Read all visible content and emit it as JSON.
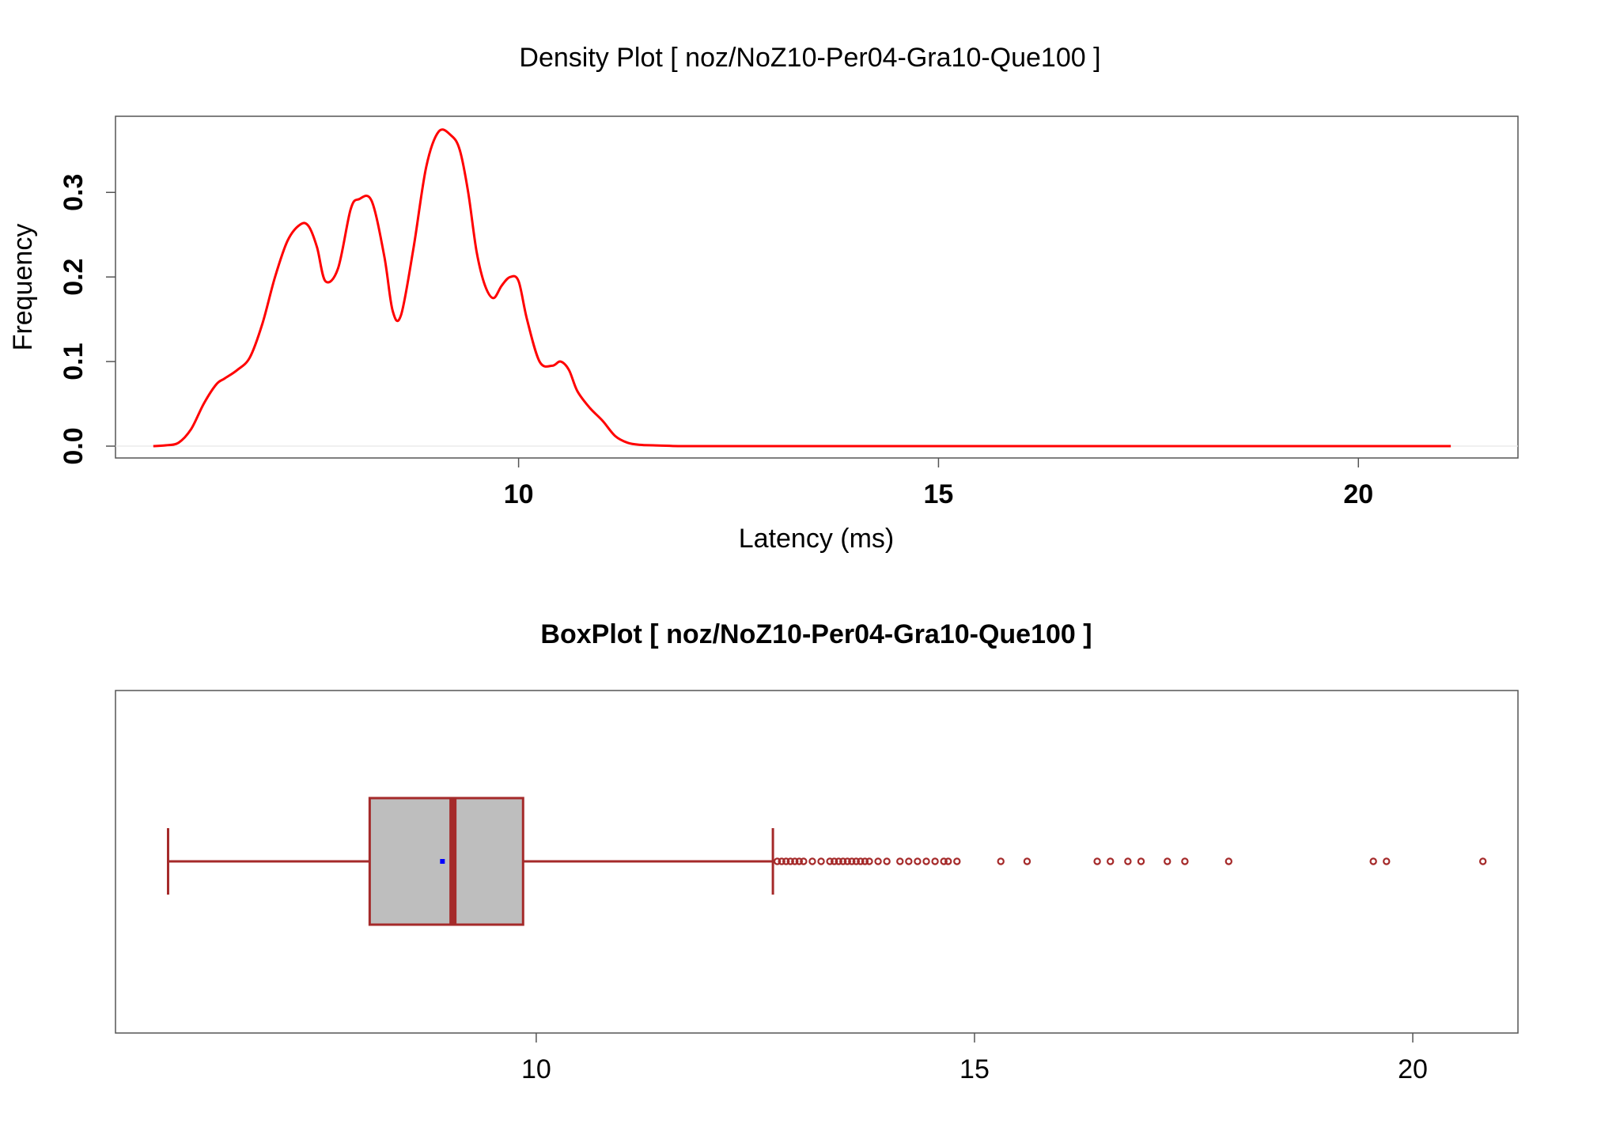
{
  "chart_data": [
    {
      "type": "line",
      "title": "Density Plot [ noz/NoZ10-Per04-Gra10-Que100 ]",
      "xlabel": "Latency (ms)",
      "ylabel": "Frequency",
      "xlim": [
        5.2,
        21.9
      ],
      "ylim": [
        -0.014,
        0.39
      ],
      "x_ticks": [
        10,
        15,
        20
      ],
      "y_ticks": [
        0.0,
        0.1,
        0.2,
        0.3
      ],
      "x_tick_labels": [
        "10",
        "15",
        "20"
      ],
      "y_tick_labels": [
        "0.0",
        "0.1",
        "0.2",
        "0.3"
      ],
      "colors": {
        "line": "#ff0000"
      },
      "series": [
        {
          "x": [
            5.65,
            5.8,
            5.95,
            6.1,
            6.25,
            6.4,
            6.5,
            6.65,
            6.8,
            6.95,
            7.1,
            7.25,
            7.4,
            7.5,
            7.6,
            7.7,
            7.85,
            8.0,
            8.1,
            8.25,
            8.4,
            8.5,
            8.6,
            8.75,
            8.9,
            9.05,
            9.2,
            9.3,
            9.4,
            9.5,
            9.6,
            9.7,
            9.8,
            9.9,
            10.0,
            10.1,
            10.25,
            10.4,
            10.5,
            10.6,
            10.7,
            10.85,
            11.0,
            11.15,
            11.3,
            11.45,
            11.6,
            11.75,
            11.9,
            12.05,
            12.2,
            12.5,
            13.0,
            14.0,
            16.0,
            18.0,
            20.0,
            21.1
          ],
          "y": [
            0.0,
            0.001,
            0.004,
            0.02,
            0.05,
            0.073,
            0.08,
            0.09,
            0.105,
            0.145,
            0.2,
            0.243,
            0.262,
            0.26,
            0.235,
            0.195,
            0.21,
            0.28,
            0.292,
            0.29,
            0.225,
            0.16,
            0.155,
            0.235,
            0.33,
            0.372,
            0.367,
            0.35,
            0.3,
            0.23,
            0.19,
            0.175,
            0.19,
            0.2,
            0.195,
            0.15,
            0.1,
            0.095,
            0.1,
            0.09,
            0.065,
            0.045,
            0.03,
            0.012,
            0.004,
            0.0015,
            0.001,
            0.0005,
            0.0,
            0.0,
            0.0,
            0.0,
            0.0,
            0.0,
            0.0,
            0.0,
            0.0,
            0.0
          ]
        }
      ]
    },
    {
      "type": "boxplot",
      "title": "BoxPlot [ noz/NoZ10-Per04-Gra10-Que100 ]",
      "xlim": [
        5.2,
        21.2
      ],
      "x_ticks": [
        10,
        15,
        20
      ],
      "x_tick_labels": [
        "10",
        "15",
        "20"
      ],
      "colors": {
        "box_fill": "#bebebe",
        "box_border": "#a52a2a",
        "mean_point": "#0000ff",
        "outliers": "#a52a2a"
      },
      "stats": {
        "whisker_low": 5.8,
        "q1": 8.1,
        "median": 9.05,
        "q3": 9.85,
        "whisker_high": 12.7,
        "mean": 8.93
      },
      "outliers": [
        12.75,
        12.8,
        12.85,
        12.9,
        12.95,
        13.0,
        13.05,
        13.15,
        13.25,
        13.35,
        13.4,
        13.45,
        13.5,
        13.55,
        13.6,
        13.65,
        13.7,
        13.75,
        13.8,
        13.9,
        14.0,
        14.15,
        14.25,
        14.35,
        14.45,
        14.55,
        14.65,
        14.7,
        14.8,
        15.3,
        15.6,
        16.4,
        16.55,
        16.75,
        16.9,
        17.2,
        17.4,
        17.9,
        19.55,
        19.7,
        20.8
      ]
    }
  ]
}
